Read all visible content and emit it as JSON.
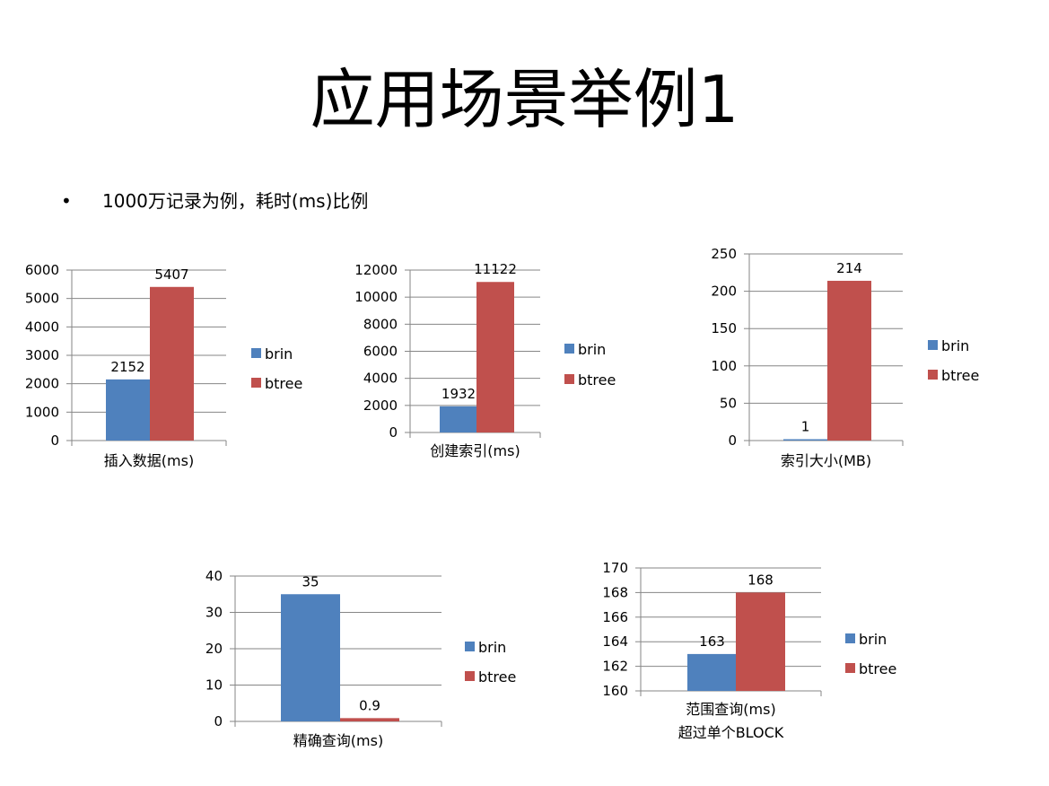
{
  "slide": {
    "title": "应用场景举例1",
    "bullet_symbol": "•",
    "bullet_text": "1000万记录为例，耗时(ms)比例"
  },
  "colors": {
    "brin": "#4F81BD",
    "btree": "#C0504D",
    "grid": "#868686",
    "axis": "#868686"
  },
  "chart_data": [
    {
      "type": "bar",
      "xlabel_lines": [
        "插入数据(ms)"
      ],
      "ylim": [
        0,
        6000
      ],
      "yticks": [
        0,
        1000,
        2000,
        3000,
        4000,
        5000,
        6000
      ],
      "series": [
        {
          "name": "brin",
          "values": [
            2152
          ]
        },
        {
          "name": "btree",
          "values": [
            5407
          ]
        }
      ],
      "data_labels": [
        "2152",
        "5407"
      ],
      "grid": true,
      "legend": "right"
    },
    {
      "type": "bar",
      "xlabel_lines": [
        "创建索引(ms)"
      ],
      "ylim": [
        0,
        12000
      ],
      "yticks": [
        0,
        2000,
        4000,
        6000,
        8000,
        10000,
        12000
      ],
      "series": [
        {
          "name": "brin",
          "values": [
            1932
          ]
        },
        {
          "name": "btree",
          "values": [
            11122
          ]
        }
      ],
      "data_labels": [
        "1932",
        "11122"
      ],
      "grid": true,
      "legend": "right"
    },
    {
      "type": "bar",
      "xlabel_lines": [
        "索引大小(MB)"
      ],
      "ylim": [
        0,
        250
      ],
      "yticks": [
        0,
        50,
        100,
        150,
        200,
        250
      ],
      "series": [
        {
          "name": "brin",
          "values": [
            1
          ]
        },
        {
          "name": "btree",
          "values": [
            214
          ]
        }
      ],
      "data_labels": [
        "1",
        "214"
      ],
      "grid": true,
      "legend": "right"
    },
    {
      "type": "bar",
      "xlabel_lines": [
        "精确查询(ms)"
      ],
      "ylim": [
        0,
        40
      ],
      "yticks": [
        0,
        10,
        20,
        30,
        40
      ],
      "series": [
        {
          "name": "brin",
          "values": [
            35
          ]
        },
        {
          "name": "btree",
          "values": [
            0.9
          ]
        }
      ],
      "data_labels": [
        "35",
        "0.9"
      ],
      "grid": true,
      "legend": "right"
    },
    {
      "type": "bar",
      "xlabel_lines": [
        "范围查询(ms)",
        "超过单个BLOCK"
      ],
      "ylim": [
        160,
        170
      ],
      "yticks": [
        160,
        162,
        164,
        166,
        168,
        170
      ],
      "series": [
        {
          "name": "brin",
          "values": [
            163
          ]
        },
        {
          "name": "btree",
          "values": [
            168
          ]
        }
      ],
      "data_labels": [
        "163",
        "168"
      ],
      "grid": true,
      "legend": "right"
    }
  ]
}
